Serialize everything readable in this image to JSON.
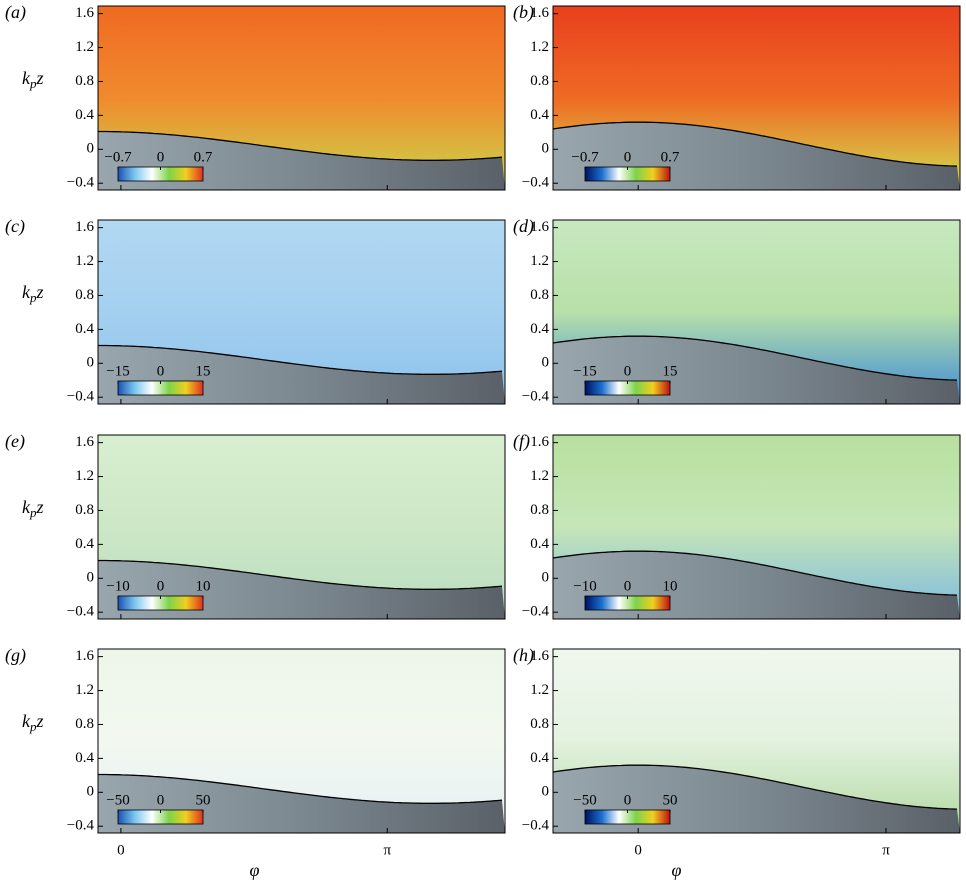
{
  "chart_data": [
    {
      "type": "heatmap",
      "label": "(a)",
      "ylabel": [
        "k",
        "p",
        "z"
      ],
      "xlim": [
        -0.27,
        4.53
      ],
      "ylim": [
        -0.48,
        1.69
      ],
      "xticks": [
        {
          "value": 0,
          "label": "0"
        },
        {
          "value": 3.14159,
          "label": "π"
        }
      ],
      "yticks": [
        {
          "value": -0.4,
          "label": "−0.4"
        },
        0,
        0.4,
        0.8,
        1.2,
        1.6
      ],
      "field_color": [
        "#ef6a22",
        "#f08a2e",
        "#c8d84a"
      ],
      "colorbar": {
        "ticks": [
          {
            "value": -0.7,
            "label": "−0.7"
          },
          0,
          0.7
        ],
        "colors": [
          "#1a50b0",
          "#7cc8f0",
          "#ffffff",
          "#7ed24a",
          "#f0d020",
          "#e03020"
        ]
      }
    },
    {
      "type": "heatmap",
      "label": "(b)",
      "xlim": [
        -1.08,
        4.08
      ],
      "ylim": [
        -0.48,
        1.69
      ],
      "xticks": [
        {
          "value": 0,
          "label": "0"
        },
        {
          "value": 3.14159,
          "label": "π"
        }
      ],
      "yticks": [
        {
          "value": -0.4,
          "label": "−0.4"
        },
        0,
        0.4,
        0.8,
        1.2,
        1.6
      ],
      "field_color": [
        "#e8401e",
        "#ef6a24",
        "#d0e050"
      ],
      "colorbar": {
        "ticks": [
          {
            "value": -0.7,
            "label": "−0.7"
          },
          0,
          0.7
        ],
        "colors": [
          "#001060",
          "#1a70d0",
          "#ffffff",
          "#7ed24a",
          "#f0d020",
          "#c01010"
        ]
      }
    },
    {
      "type": "heatmap",
      "label": "(c)",
      "ylabel": [
        "k",
        "p",
        "z"
      ],
      "xlim": [
        -0.27,
        4.53
      ],
      "ylim": [
        -0.48,
        1.69
      ],
      "xticks": [
        {
          "value": 0,
          "label": "0"
        },
        {
          "value": 3.14159,
          "label": "π"
        }
      ],
      "yticks": [
        {
          "value": -0.4,
          "label": "−0.4"
        },
        0,
        0.4,
        0.8,
        1.2,
        1.6
      ],
      "field_color": [
        "#b2d8f2",
        "#a4d0f0",
        "#8cc2ec"
      ],
      "colorbar": {
        "ticks": [
          {
            "value": -15,
            "label": "−15"
          },
          0,
          15
        ],
        "colors": [
          "#1a50b0",
          "#7cc8f0",
          "#ffffff",
          "#7ed24a",
          "#f0d020",
          "#e03020"
        ]
      }
    },
    {
      "type": "heatmap",
      "label": "(d)",
      "xlim": [
        -1.08,
        4.08
      ],
      "ylim": [
        -0.48,
        1.69
      ],
      "xticks": [
        {
          "value": 0,
          "label": "0"
        },
        {
          "value": 3.14159,
          "label": "π"
        }
      ],
      "yticks": [
        {
          "value": -0.4,
          "label": "−0.4"
        },
        0,
        0.4,
        0.8,
        1.2,
        1.6
      ],
      "field_color": [
        "#c8e8c0",
        "#b8e0a8",
        "#3c8ad8"
      ],
      "colorbar": {
        "ticks": [
          {
            "value": -15,
            "label": "−15"
          },
          0,
          15
        ],
        "colors": [
          "#001060",
          "#1a70d0",
          "#ffffff",
          "#7ed24a",
          "#f0d020",
          "#c01010"
        ]
      }
    },
    {
      "type": "heatmap",
      "label": "(e)",
      "ylabel": [
        "k",
        "p",
        "z"
      ],
      "xlim": [
        -0.27,
        4.53
      ],
      "ylim": [
        -0.48,
        1.69
      ],
      "xticks": [
        {
          "value": 0,
          "label": "0"
        },
        {
          "value": 3.14159,
          "label": "π"
        }
      ],
      "yticks": [
        {
          "value": -0.4,
          "label": "−0.4"
        },
        0,
        0.4,
        0.8,
        1.2,
        1.6
      ],
      "field_color": [
        "#d8eed0",
        "#cde8c6",
        "#b8dcc0"
      ],
      "colorbar": {
        "ticks": [
          {
            "value": -10,
            "label": "−10"
          },
          0,
          10
        ],
        "colors": [
          "#1a50b0",
          "#7cc8f0",
          "#ffffff",
          "#7ed24a",
          "#f0d020",
          "#e03020"
        ]
      }
    },
    {
      "type": "heatmap",
      "label": "(f)",
      "xlim": [
        -1.08,
        4.08
      ],
      "ylim": [
        -0.48,
        1.69
      ],
      "xticks": [
        {
          "value": 0,
          "label": "0"
        },
        {
          "value": 3.14159,
          "label": "π"
        }
      ],
      "yticks": [
        {
          "value": -0.4,
          "label": "−0.4"
        },
        0,
        0.4,
        0.8,
        1.2,
        1.6
      ],
      "field_color": [
        "#b8e0a0",
        "#c6e6b8",
        "#7ab8e0"
      ],
      "colorbar": {
        "ticks": [
          {
            "value": -10,
            "label": "−10"
          },
          0,
          10
        ],
        "colors": [
          "#001060",
          "#1a70d0",
          "#ffffff",
          "#7ed24a",
          "#f0d020",
          "#c01010"
        ]
      }
    },
    {
      "type": "heatmap",
      "label": "(g)",
      "ylabel": [
        "k",
        "p",
        "z"
      ],
      "xlim": [
        -0.27,
        4.53
      ],
      "ylim": [
        -0.48,
        1.69
      ],
      "xticks": [
        {
          "value": 0,
          "label": "0"
        },
        {
          "value": 3.14159,
          "label": "π"
        }
      ],
      "yticks": [
        {
          "value": -0.4,
          "label": "−0.4"
        },
        0,
        0.4,
        0.8,
        1.2,
        1.6
      ],
      "xlabel": "φ",
      "field_color": [
        "#eef6ea",
        "#f2f8f0",
        "#e6f0f4"
      ],
      "colorbar": {
        "ticks": [
          {
            "value": -50,
            "label": "−50"
          },
          0,
          50
        ],
        "colors": [
          "#1a50b0",
          "#7cc8f0",
          "#ffffff",
          "#7ed24a",
          "#f0d020",
          "#e03020"
        ]
      }
    },
    {
      "type": "heatmap",
      "label": "(h)",
      "xlim": [
        -1.08,
        4.08
      ],
      "ylim": [
        -0.48,
        1.69
      ],
      "xticks": [
        {
          "value": 0,
          "label": "0"
        },
        {
          "value": 3.14159,
          "label": "π"
        }
      ],
      "yticks": [
        {
          "value": -0.4,
          "label": "−0.4"
        },
        0,
        0.4,
        0.8,
        1.2,
        1.6
      ],
      "xlabel": "φ",
      "field_color": [
        "#f0f7ee",
        "#e4f2e0",
        "#b0d8a0"
      ],
      "colorbar": {
        "ticks": [
          {
            "value": -50,
            "label": "−50"
          },
          0,
          50
        ],
        "colors": [
          "#001060",
          "#1a70d0",
          "#ffffff",
          "#7ed24a",
          "#f0d020",
          "#c01010"
        ]
      }
    }
  ]
}
